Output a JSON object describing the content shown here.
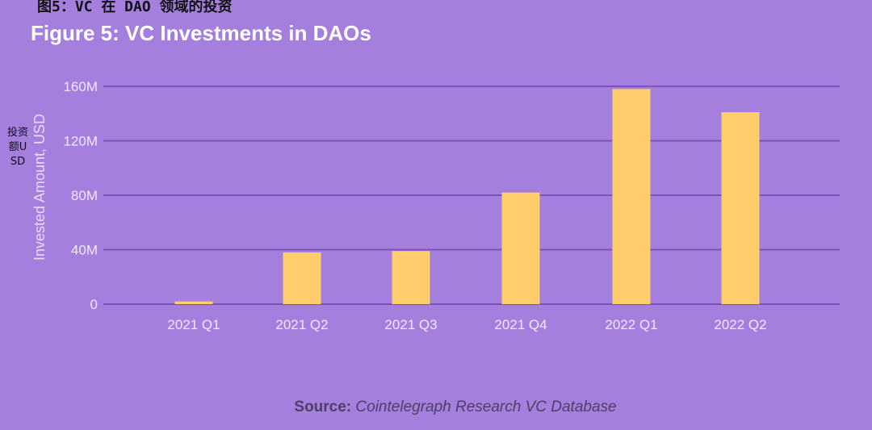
{
  "headings": {
    "chinese_title": "图5：VC 在 DAO 领域的投资",
    "title": "Figure 5: VC Investments in DAOs",
    "chinese_ylabel": "投资额USD",
    "source_label": "Source:",
    "source_text": "Cointelegraph Research VC Database"
  },
  "chart_data": {
    "type": "bar",
    "title": "Figure 5: VC Investments in DAOs",
    "xlabel": "",
    "ylabel": "Invested Amount, USD",
    "categories": [
      "2021 Q1",
      "2021 Q2",
      "2021 Q3",
      "2021 Q4",
      "2022 Q1",
      "2022 Q2"
    ],
    "values": [
      2,
      38,
      39,
      82,
      158,
      141
    ],
    "value_unit": "M USD",
    "ylim": [
      0,
      160
    ],
    "yticks": [
      0,
      40,
      80,
      120,
      160
    ],
    "ytick_labels": [
      "0",
      "40M",
      "80M",
      "120M",
      "160M"
    ],
    "grid": true,
    "legend": "none",
    "colors": {
      "bar": "#ffcd6b",
      "grid": "#7a52b8",
      "tick_label": "#f1e9ff",
      "axis_label": "#eadcff",
      "background": "#a57fde"
    }
  }
}
